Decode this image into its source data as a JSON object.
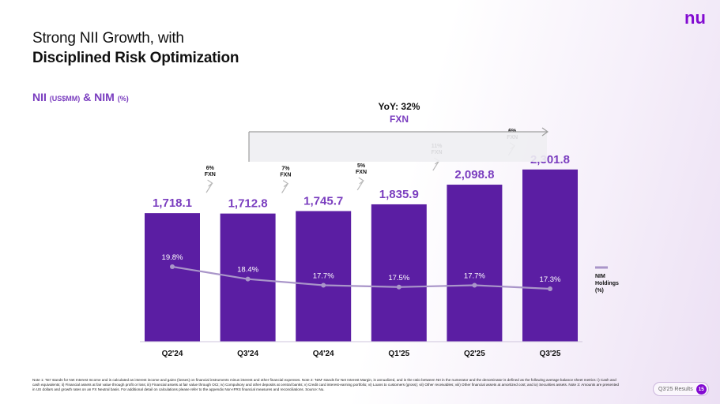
{
  "logo_text": "nu",
  "title": {
    "line1": "Strong NII Growth, with",
    "line2": "Disciplined Risk Optimization"
  },
  "subtitle": {
    "main": "NII ",
    "unit1": "(US$MM)",
    "mid": " & NIM ",
    "unit2": "(%)"
  },
  "colors": {
    "bar": "#5b1ea3",
    "bar_dark": "#4a168a",
    "accent": "#7a3dbf",
    "line": "#a995c9",
    "arrow": "#b9b9b9",
    "brand": "#820ad1"
  },
  "chart_data": {
    "type": "bar",
    "categories": [
      "Q2'24",
      "Q3'24",
      "Q4'24",
      "Q1'25",
      "Q2'25",
      "Q3'25"
    ],
    "series": [
      {
        "values": [
          1718.1,
          1712.8,
          1745.7,
          1835.9,
          2098.8,
          2301.8
        ],
        "labels": [
          "1,718.1",
          "1,712.8",
          "1,745.7",
          "1,835.9",
          "2,098.8",
          "2,301.8"
        ]
      },
      {
        "name": "NIM Holdings (%)",
        "type": "line",
        "values": [
          19.8,
          18.4,
          17.7,
          17.5,
          17.7,
          17.3
        ],
        "labels": [
          "19.8%",
          "18.4%",
          "17.7%",
          "17.5%",
          "17.7%",
          "17.3%"
        ]
      }
    ],
    "growth_annotations": [
      {
        "pct": "6%",
        "tag": "FXN"
      },
      {
        "pct": "7%",
        "tag": "FXN"
      },
      {
        "pct": "5%",
        "tag": "FXN"
      },
      {
        "pct": "11%",
        "tag": "FXN"
      },
      {
        "pct": "6%",
        "tag": "FXN"
      }
    ],
    "yoy": {
      "label": "YoY: 32%",
      "tag": "FXN"
    },
    "legend": {
      "line1": "NIM",
      "line2": "Holdings",
      "line3": "(%)"
    }
  },
  "footnote": "Note 1: 'NII' stands for Net Interest Income and is calculated as interest income and gains (losses) on financial instruments minus interest and other financial expenses. Note 2: 'NIM' stands for Net Interest Margin, is annualized, and is the ratio between NII in the numerator and the denominator is defined as the following average balance sheet metrics: i) Cash and cash equivalents; ii) Financial assets at fair value through profit or loss; iii) Financial assets at fair value through OCI; iv) Compulsory and other deposits at central banks; v) Credit card interest-earning portfolio; vi) Loans to customers (gross); vii) Other receivables; viii) Other financial assets at amortized cost; and ix) Securities assets. Note 3: Amounts are presented in US dollars and growth rates on an FX Neutral basis. For additional detail on calculations please refer to the appendix Non-IFRS financial measures and reconciliations. Source: Nu.",
  "page_label": "Q3'25 Results",
  "page_number": "15"
}
